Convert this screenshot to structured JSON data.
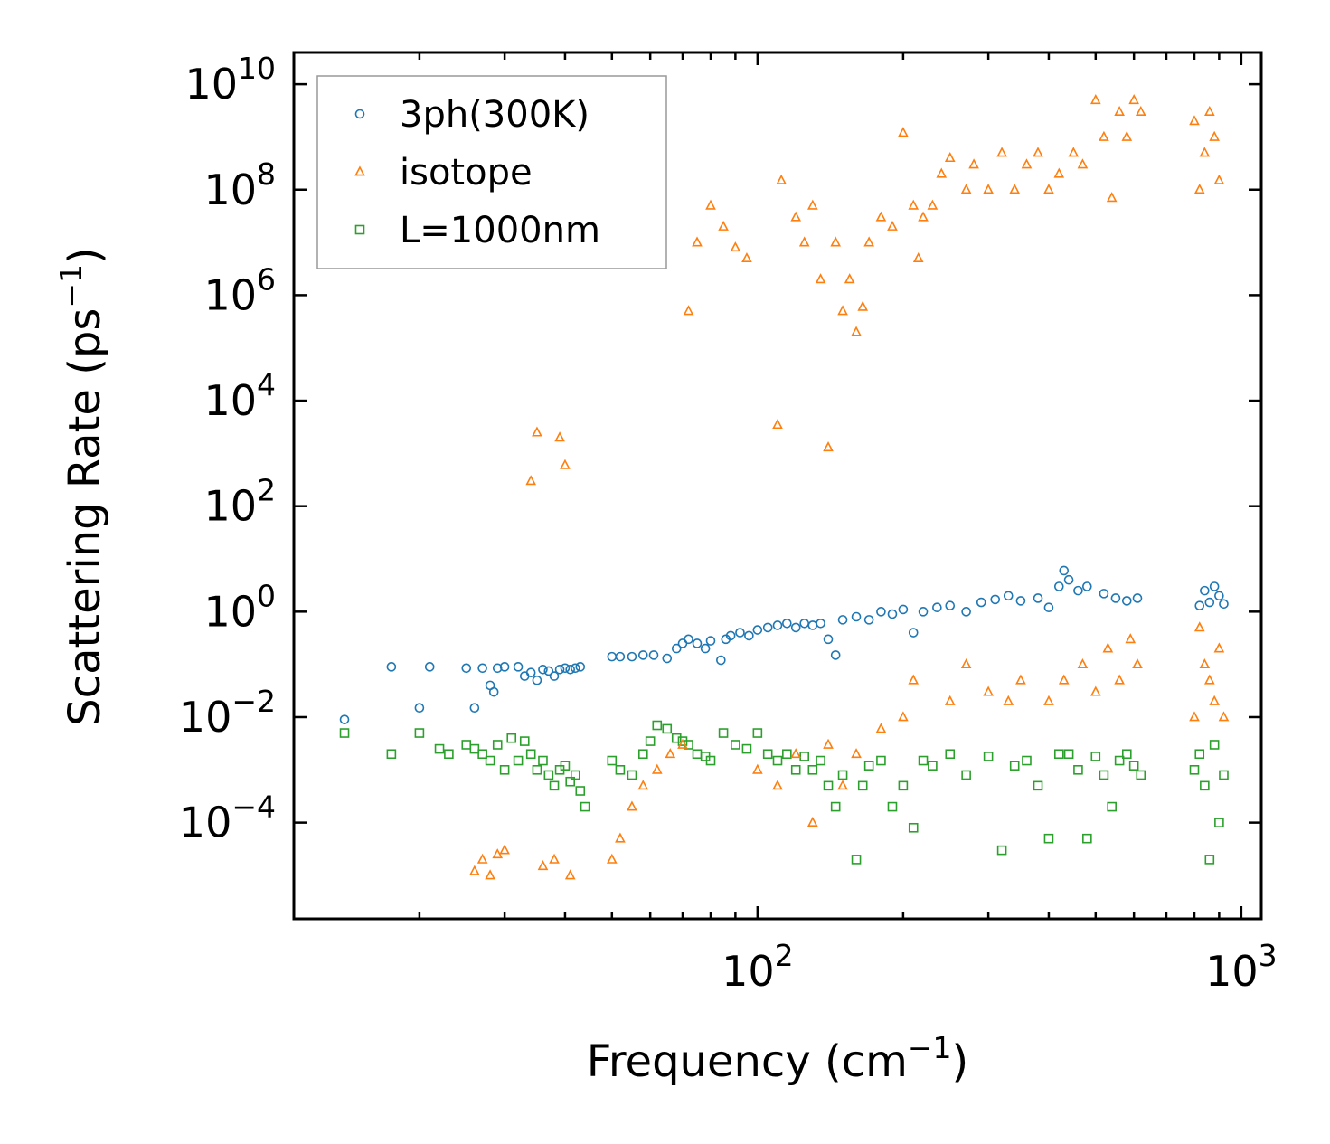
{
  "chart_data": {
    "type": "scatter",
    "title": "",
    "xlabel": "Frequency (cm",
    "xlabel_sup": "−1",
    "xlabel_end": ")",
    "ylabel": "Scattering Rate (ps",
    "ylabel_sup": "−1",
    "ylabel_end": ")",
    "xscale": "log",
    "yscale": "log",
    "xlim": [
      11,
      1100
    ],
    "ylim": [
      1.5e-06,
      40000000000.0
    ],
    "x_ticks": [
      {
        "value": 100,
        "base": "10",
        "exp": "2"
      },
      {
        "value": 1000,
        "base": "10",
        "exp": "3"
      }
    ],
    "y_ticks": [
      {
        "value": 10000000000.0,
        "base": "10",
        "exp": "10"
      },
      {
        "value": 100000000.0,
        "base": "10",
        "exp": "8"
      },
      {
        "value": 1000000.0,
        "base": "10",
        "exp": "6"
      },
      {
        "value": 10000.0,
        "base": "10",
        "exp": "4"
      },
      {
        "value": 100.0,
        "base": "10",
        "exp": "2"
      },
      {
        "value": 1,
        "base": "10",
        "exp": "0"
      },
      {
        "value": 0.01,
        "base": "10",
        "exp": "−2"
      },
      {
        "value": 0.0001,
        "base": "10",
        "exp": "−4"
      }
    ],
    "legend_position": "top-left",
    "series": [
      {
        "name": "3ph(300K)",
        "marker": "circle",
        "color": "#1f77b4",
        "points": [
          [
            14,
            0.009
          ],
          [
            17.5,
            0.09
          ],
          [
            20,
            0.015
          ],
          [
            21,
            0.09
          ],
          [
            25,
            0.085
          ],
          [
            26,
            0.015
          ],
          [
            27,
            0.085
          ],
          [
            28,
            0.04
          ],
          [
            28.5,
            0.03
          ],
          [
            29,
            0.085
          ],
          [
            30,
            0.09
          ],
          [
            32,
            0.09
          ],
          [
            33,
            0.06
          ],
          [
            34,
            0.07
          ],
          [
            35,
            0.05
          ],
          [
            36,
            0.08
          ],
          [
            37,
            0.075
          ],
          [
            38,
            0.06
          ],
          [
            39,
            0.08
          ],
          [
            40,
            0.085
          ],
          [
            41,
            0.08
          ],
          [
            42,
            0.085
          ],
          [
            43,
            0.09
          ],
          [
            50,
            0.14
          ],
          [
            52,
            0.14
          ],
          [
            55,
            0.14
          ],
          [
            58,
            0.15
          ],
          [
            61,
            0.15
          ],
          [
            65,
            0.13
          ],
          [
            68,
            0.2
          ],
          [
            70,
            0.25
          ],
          [
            72,
            0.3
          ],
          [
            75,
            0.25
          ],
          [
            78,
            0.2
          ],
          [
            80,
            0.28
          ],
          [
            84,
            0.12
          ],
          [
            86,
            0.3
          ],
          [
            88,
            0.35
          ],
          [
            92,
            0.4
          ],
          [
            96,
            0.35
          ],
          [
            100,
            0.45
          ],
          [
            105,
            0.5
          ],
          [
            110,
            0.55
          ],
          [
            115,
            0.6
          ],
          [
            120,
            0.5
          ],
          [
            125,
            0.6
          ],
          [
            130,
            0.55
          ],
          [
            135,
            0.6
          ],
          [
            140,
            0.3
          ],
          [
            145,
            0.15
          ],
          [
            150,
            0.7
          ],
          [
            160,
            0.8
          ],
          [
            170,
            0.7
          ],
          [
            180,
            1.0
          ],
          [
            190,
            0.9
          ],
          [
            200,
            1.1
          ],
          [
            210,
            0.4
          ],
          [
            220,
            1.0
          ],
          [
            235,
            1.2
          ],
          [
            250,
            1.3
          ],
          [
            270,
            1.0
          ],
          [
            290,
            1.5
          ],
          [
            310,
            1.7
          ],
          [
            330,
            2.0
          ],
          [
            350,
            1.6
          ],
          [
            380,
            1.8
          ],
          [
            400,
            1.2
          ],
          [
            420,
            3.0
          ],
          [
            430,
            6.0
          ],
          [
            440,
            4.0
          ],
          [
            460,
            2.5
          ],
          [
            480,
            3.0
          ],
          [
            520,
            2.2
          ],
          [
            550,
            1.8
          ],
          [
            580,
            1.6
          ],
          [
            610,
            1.8
          ],
          [
            820,
            1.3
          ],
          [
            840,
            2.5
          ],
          [
            860,
            1.5
          ],
          [
            880,
            3.0
          ],
          [
            900,
            2.0
          ],
          [
            920,
            1.4
          ]
        ]
      },
      {
        "name": "isotope",
        "marker": "triangle",
        "color": "#ff7f0e",
        "points": [
          [
            26,
            1.2e-05
          ],
          [
            27,
            2e-05
          ],
          [
            28,
            1e-05
          ],
          [
            29,
            2.5e-05
          ],
          [
            30,
            3e-05
          ],
          [
            34,
            300.0
          ],
          [
            35,
            2500.0
          ],
          [
            36,
            1.5e-05
          ],
          [
            38,
            2e-05
          ],
          [
            39,
            2000.0
          ],
          [
            40,
            600.0
          ],
          [
            41,
            1e-05
          ],
          [
            50,
            2e-05
          ],
          [
            52,
            5e-05
          ],
          [
            55,
            0.0002
          ],
          [
            58,
            0.0005
          ],
          [
            62,
            0.001
          ],
          [
            66,
            0.002
          ],
          [
            70,
            0.003
          ],
          [
            72,
            500000.0
          ],
          [
            75,
            10000000.0
          ],
          [
            80,
            50000000.0
          ],
          [
            85,
            20000000.0
          ],
          [
            90,
            8000000.0
          ],
          [
            95,
            5000000.0
          ],
          [
            110,
            3500.0
          ],
          [
            112,
            150000000.0
          ],
          [
            120,
            30000000.0
          ],
          [
            125,
            10000000.0
          ],
          [
            130,
            50000000.0
          ],
          [
            135,
            2000000.0
          ],
          [
            140,
            1300.0
          ],
          [
            145,
            10000000.0
          ],
          [
            150,
            500000.0
          ],
          [
            155,
            2000000.0
          ],
          [
            160,
            200000.0
          ],
          [
            165,
            600000.0
          ],
          [
            170,
            10000000.0
          ],
          [
            180,
            30000000.0
          ],
          [
            190,
            20000000.0
          ],
          [
            200,
            1200000000.0
          ],
          [
            210,
            50000000.0
          ],
          [
            215,
            5000000.0
          ],
          [
            220,
            30000000.0
          ],
          [
            230,
            50000000.0
          ],
          [
            240,
            200000000.0
          ],
          [
            250,
            400000000.0
          ],
          [
            270,
            100000000.0
          ],
          [
            280,
            300000000.0
          ],
          [
            300,
            100000000.0
          ],
          [
            320,
            500000000.0
          ],
          [
            340,
            100000000.0
          ],
          [
            360,
            300000000.0
          ],
          [
            380,
            500000000.0
          ],
          [
            400,
            100000000.0
          ],
          [
            420,
            200000000.0
          ],
          [
            450,
            500000000.0
          ],
          [
            470,
            300000000.0
          ],
          [
            500,
            5000000000.0
          ],
          [
            520,
            1000000000.0
          ],
          [
            540,
            70000000.0
          ],
          [
            560,
            3000000000.0
          ],
          [
            580,
            1000000000.0
          ],
          [
            600,
            5000000000.0
          ],
          [
            620,
            3000000000.0
          ],
          [
            800,
            2000000000.0
          ],
          [
            820,
            100000000.0
          ],
          [
            840,
            500000000.0
          ],
          [
            860,
            3000000000.0
          ],
          [
            880,
            1000000000.0
          ],
          [
            900,
            150000000.0
          ],
          [
            140,
            0.003
          ],
          [
            160,
            0.002
          ],
          [
            180,
            0.006
          ],
          [
            200,
            0.01
          ],
          [
            210,
            0.05
          ],
          [
            250,
            0.02
          ],
          [
            270,
            0.1
          ],
          [
            300,
            0.03
          ],
          [
            330,
            0.02
          ],
          [
            350,
            0.05
          ],
          [
            400,
            0.02
          ],
          [
            430,
            0.05
          ],
          [
            470,
            0.1
          ],
          [
            500,
            0.03
          ],
          [
            530,
            0.2
          ],
          [
            560,
            0.05
          ],
          [
            590,
            0.3
          ],
          [
            610,
            0.1
          ],
          [
            800,
            0.01
          ],
          [
            820,
            0.5
          ],
          [
            840,
            0.1
          ],
          [
            860,
            0.05
          ],
          [
            880,
            0.02
          ],
          [
            900,
            0.2
          ],
          [
            920,
            0.01
          ],
          [
            100,
            0.001
          ],
          [
            110,
            0.0005
          ],
          [
            120,
            0.002
          ],
          [
            130,
            0.0001
          ],
          [
            150,
            0.0005
          ]
        ]
      },
      {
        "name": "L=1000nm",
        "marker": "square",
        "color": "#2ca02c",
        "points": [
          [
            14,
            0.005
          ],
          [
            17.5,
            0.002
          ],
          [
            20,
            0.005
          ],
          [
            22,
            0.0025
          ],
          [
            23,
            0.002
          ],
          [
            25,
            0.003
          ],
          [
            26,
            0.0025
          ],
          [
            27,
            0.002
          ],
          [
            28,
            0.0015
          ],
          [
            29,
            0.003
          ],
          [
            30,
            0.001
          ],
          [
            31,
            0.004
          ],
          [
            32,
            0.0015
          ],
          [
            33,
            0.0035
          ],
          [
            34,
            0.002
          ],
          [
            35,
            0.001
          ],
          [
            36,
            0.0015
          ],
          [
            37,
            0.0008
          ],
          [
            38,
            0.0005
          ],
          [
            39,
            0.001
          ],
          [
            40,
            0.0012
          ],
          [
            41,
            0.0006
          ],
          [
            42,
            0.0008
          ],
          [
            43,
            0.0004
          ],
          [
            44,
            0.0002
          ],
          [
            50,
            0.0015
          ],
          [
            52,
            0.001
          ],
          [
            55,
            0.0008
          ],
          [
            58,
            0.002
          ],
          [
            60,
            0.0035
          ],
          [
            62,
            0.007
          ],
          [
            65,
            0.006
          ],
          [
            68,
            0.004
          ],
          [
            70,
            0.0035
          ],
          [
            72,
            0.003
          ],
          [
            75,
            0.002
          ],
          [
            78,
            0.0018
          ],
          [
            80,
            0.0015
          ],
          [
            85,
            0.005
          ],
          [
            90,
            0.003
          ],
          [
            95,
            0.0025
          ],
          [
            100,
            0.005
          ],
          [
            105,
            0.002
          ],
          [
            110,
            0.0015
          ],
          [
            115,
            0.002
          ],
          [
            120,
            0.001
          ],
          [
            125,
            0.0018
          ],
          [
            130,
            0.001
          ],
          [
            135,
            0.0015
          ],
          [
            140,
            0.0005
          ],
          [
            145,
            0.0002
          ],
          [
            150,
            0.0008
          ],
          [
            160,
            2e-05
          ],
          [
            165,
            0.0005
          ],
          [
            170,
            0.0012
          ],
          [
            180,
            0.0015
          ],
          [
            190,
            0.0002
          ],
          [
            200,
            0.0005
          ],
          [
            210,
            8e-05
          ],
          [
            220,
            0.0015
          ],
          [
            230,
            0.0012
          ],
          [
            250,
            0.002
          ],
          [
            270,
            0.0008
          ],
          [
            300,
            0.0018
          ],
          [
            320,
            3e-05
          ],
          [
            340,
            0.0012
          ],
          [
            360,
            0.0015
          ],
          [
            380,
            0.0005
          ],
          [
            400,
            5e-05
          ],
          [
            420,
            0.002
          ],
          [
            440,
            0.002
          ],
          [
            460,
            0.001
          ],
          [
            480,
            5e-05
          ],
          [
            500,
            0.0018
          ],
          [
            520,
            0.0008
          ],
          [
            540,
            0.0002
          ],
          [
            560,
            0.0015
          ],
          [
            580,
            0.002
          ],
          [
            600,
            0.0012
          ],
          [
            620,
            0.0008
          ],
          [
            800,
            0.001
          ],
          [
            820,
            0.002
          ],
          [
            840,
            0.0005
          ],
          [
            860,
            2e-05
          ],
          [
            880,
            0.003
          ],
          [
            900,
            0.0001
          ],
          [
            920,
            0.0008
          ]
        ]
      }
    ]
  }
}
